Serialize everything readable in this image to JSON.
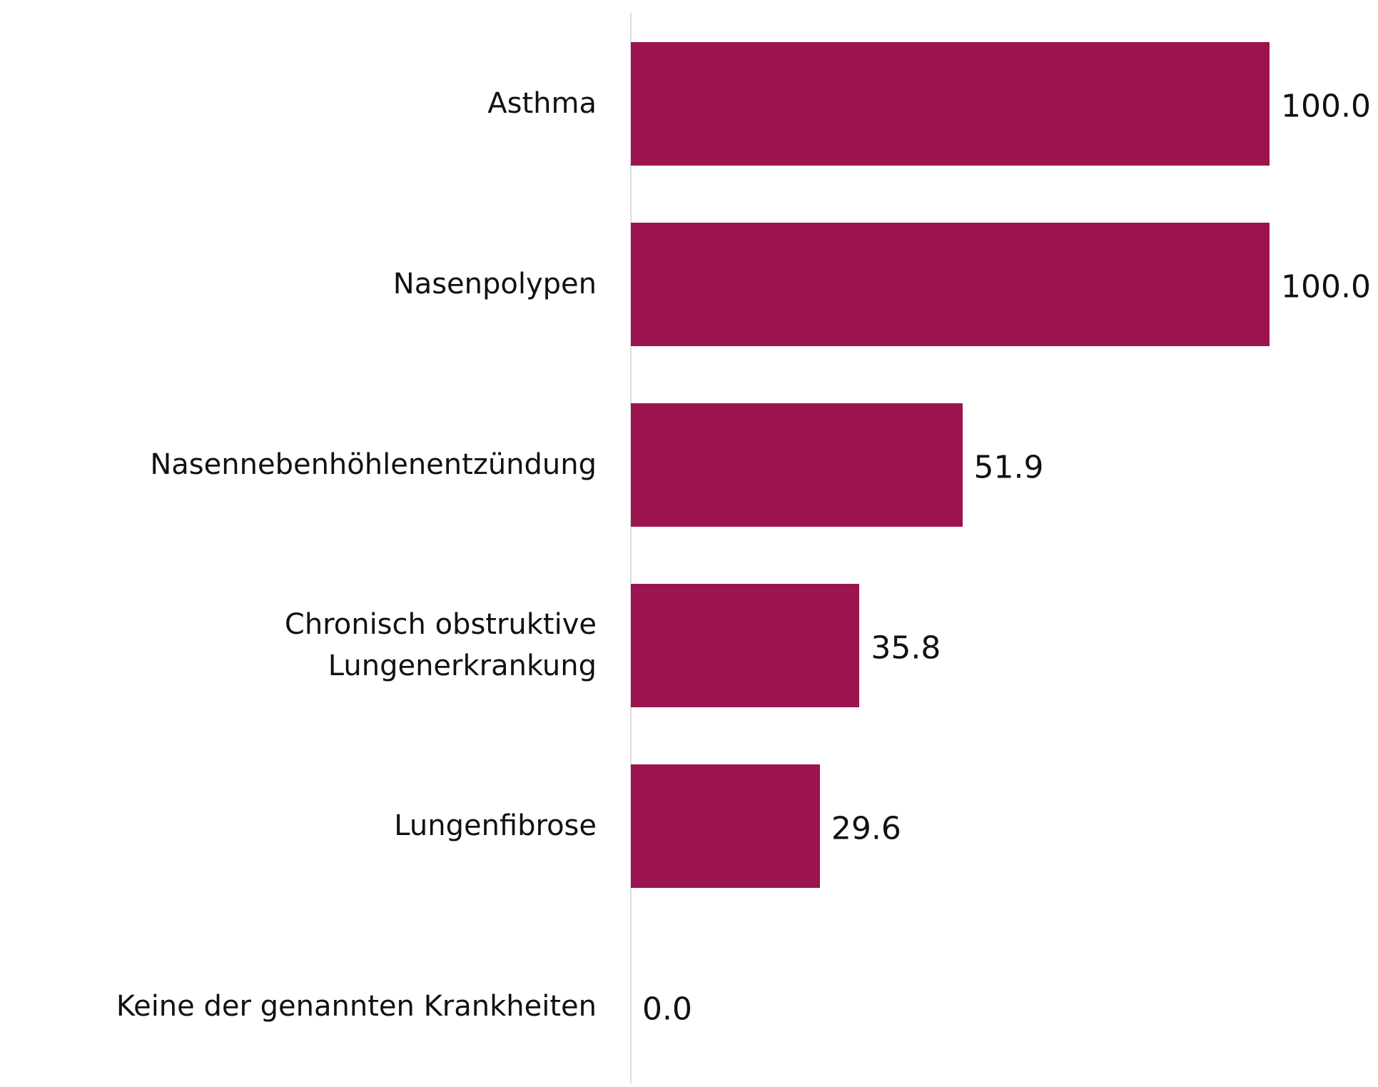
{
  "chart_data": {
    "type": "bar",
    "orientation": "horizontal",
    "categories": [
      "Asthma",
      "Nasenpolypen",
      "Nasennebenhöhlenentzündung",
      "Chronisch obstruktive Lungenerkrankung",
      "Lungenfibrose",
      "Keine der genannten Krankheiten"
    ],
    "values": [
      100,
      100,
      51.9,
      35.8,
      29.6,
      0
    ],
    "value_labels": [
      "100.0",
      "100.0",
      "51.9",
      "35.8",
      "29.6",
      "0.0"
    ],
    "color": "#9b1450",
    "xlim": [
      0,
      100
    ]
  }
}
